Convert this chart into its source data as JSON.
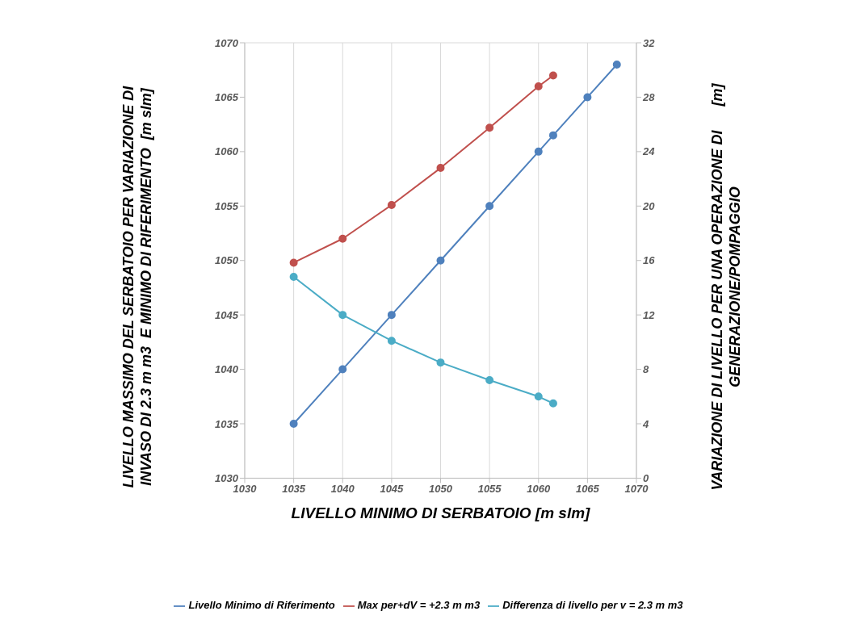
{
  "chart_data": {
    "type": "line",
    "xlabel": "LIVELLO MINIMO DI SERBATOIO  [m slm]",
    "ylabel": "LIVELLO MASSIMO DEL SERBATOIO PER VARIAZIONE DI\nINVASO DI 2.3 m m3  E MINIMO DI RIFERIMENTO  [m slm]",
    "y2label": "VARIAZIONE DI LIVELLO PER UNA OPERAZIONE DI      [m]\nGENERAZIONE/POMPAGGIO",
    "xlim": [
      1030,
      1070
    ],
    "xticks": [
      1030,
      1035,
      1040,
      1045,
      1050,
      1055,
      1060,
      1065,
      1070
    ],
    "ylim": [
      1030,
      1070
    ],
    "yticks": [
      1030,
      1035,
      1040,
      1045,
      1050,
      1055,
      1060,
      1065,
      1070
    ],
    "y2lim": [
      0,
      32
    ],
    "y2ticks": [
      0,
      4,
      8,
      12,
      16,
      20,
      24,
      28,
      32
    ],
    "grid": true,
    "legend": "bottom",
    "marker": "circle",
    "line_style": "solid",
    "series": [
      {
        "name": "Livello Minimo di Riferimento",
        "color": "#4f81bd",
        "x": [
          1035,
          1040,
          1045,
          1050,
          1055,
          1060,
          1061.5,
          1065,
          1068
        ],
        "values": [
          1035,
          1040,
          1045,
          1050,
          1055,
          1060,
          1061.5,
          1065,
          1068
        ]
      },
      {
        "name": "Max per+dV = +2.3 m m3",
        "color": "#c0504d",
        "x": [
          1035,
          1040,
          1045,
          1050,
          1055,
          1060,
          1061.5
        ],
        "values": [
          1049.8,
          1052,
          1055.1,
          1058.5,
          1062.2,
          1066,
          1067
        ]
      },
      {
        "name": "Differenza di livello per v = 2.3 m m3",
        "color": "#4bacc6",
        "axis": "y2",
        "x": [
          1035,
          1040,
          1045,
          1050,
          1055,
          1060,
          1061.5
        ],
        "values": [
          14.8,
          12,
          10.1,
          8.5,
          7.2,
          6,
          5.5
        ]
      }
    ]
  }
}
